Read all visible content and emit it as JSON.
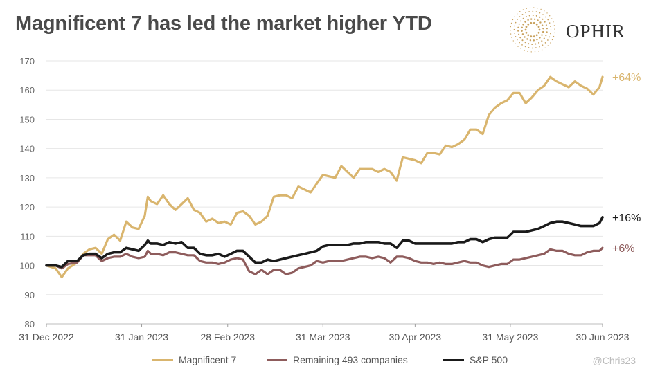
{
  "title": "Magnificent 7 has led the market higher YTD",
  "brand": {
    "name": "OPHIR",
    "logo_icon": "sunburst-dots-logo",
    "color": "#c9a25e"
  },
  "watermark": "@Chris23",
  "chart_data": {
    "type": "line",
    "title": "Magnificent 7 has led the market higher YTD",
    "xlabel": "",
    "ylabel": "",
    "ylim": [
      80,
      170
    ],
    "yticks": [
      "80",
      "90",
      "100",
      "110",
      "120",
      "130",
      "140",
      "150",
      "160",
      "170"
    ],
    "xlim": [
      0,
      181
    ],
    "xticks": [
      {
        "x": 0,
        "label": "31 Dec 2022"
      },
      {
        "x": 31,
        "label": "31 Jan 2023"
      },
      {
        "x": 59,
        "label": "28 Feb 2023"
      },
      {
        "x": 90,
        "label": "31 Mar 2023"
      },
      {
        "x": 120,
        "label": "30 Apr 2023"
      },
      {
        "x": 151,
        "label": "31 May 2023"
      },
      {
        "x": 181,
        "label": "30 Jun 2023"
      }
    ],
    "grid": "horizontal",
    "legend_position": "bottom",
    "series": [
      {
        "name": "Magnificent 7",
        "color": "#d9b56e",
        "end_label": "+64%",
        "x": [
          0,
          3,
          5,
          7,
          10,
          12,
          14,
          16,
          18,
          20,
          22,
          24,
          26,
          28,
          30,
          32,
          33,
          34,
          36,
          38,
          40,
          42,
          44,
          46,
          48,
          50,
          52,
          54,
          56,
          58,
          60,
          62,
          64,
          66,
          68,
          70,
          72,
          74,
          76,
          78,
          80,
          82,
          84,
          86,
          88,
          90,
          92,
          94,
          96,
          98,
          100,
          102,
          104,
          106,
          108,
          110,
          112,
          114,
          116,
          118,
          120,
          122,
          124,
          126,
          128,
          130,
          132,
          134,
          136,
          138,
          140,
          142,
          144,
          146,
          148,
          150,
          152,
          154,
          156,
          158,
          160,
          162,
          164,
          166,
          168,
          170,
          172,
          174,
          176,
          178,
          180,
          181
        ],
        "values": [
          100,
          99,
          96,
          99,
          101,
          104,
          105.5,
          106,
          104,
          109,
          110.5,
          108.5,
          115,
          113,
          112.5,
          117,
          123.5,
          122,
          121,
          124,
          121,
          119,
          121,
          123,
          119,
          118,
          115,
          116,
          114.5,
          115,
          114,
          118,
          118.5,
          117,
          114,
          115,
          117,
          123.5,
          124,
          124,
          123,
          127,
          126,
          125,
          128,
          131,
          130.5,
          130,
          134,
          132,
          130,
          133,
          133,
          133,
          132,
          133,
          132,
          129,
          137,
          136.5,
          136,
          135,
          138.5,
          138.5,
          138,
          141,
          140.5,
          141.5,
          143,
          146.5,
          146.5,
          145,
          151.5,
          154,
          155.5,
          156.5,
          159,
          159,
          155.5,
          157.5,
          160,
          161.5,
          164.5,
          163,
          162,
          161,
          163,
          161.5,
          160.5,
          158.5,
          161,
          164.5
        ]
      },
      {
        "name": "Remaining 493 companies",
        "color": "#8e5c5c",
        "end_label": "+6%",
        "x": [
          0,
          3,
          5,
          7,
          10,
          12,
          14,
          16,
          18,
          20,
          22,
          24,
          26,
          28,
          30,
          32,
          33,
          34,
          36,
          38,
          40,
          42,
          44,
          46,
          48,
          50,
          52,
          54,
          56,
          58,
          60,
          62,
          64,
          66,
          68,
          70,
          72,
          74,
          76,
          78,
          80,
          82,
          84,
          86,
          88,
          90,
          92,
          94,
          96,
          98,
          100,
          102,
          104,
          106,
          108,
          110,
          112,
          114,
          116,
          118,
          120,
          122,
          124,
          126,
          128,
          130,
          132,
          134,
          136,
          138,
          140,
          142,
          144,
          146,
          148,
          150,
          152,
          154,
          156,
          158,
          160,
          162,
          164,
          166,
          168,
          170,
          172,
          174,
          176,
          178,
          180,
          181
        ],
        "values": [
          100,
          100,
          99,
          100.5,
          101,
          103.5,
          103.5,
          103.5,
          101.5,
          102.5,
          103,
          103,
          104,
          103,
          102.5,
          103,
          105,
          104,
          104,
          103.5,
          104.5,
          104.5,
          104,
          103.5,
          103.5,
          101.5,
          101,
          101,
          100.5,
          101,
          102,
          102.5,
          102,
          98,
          97,
          98.5,
          97,
          98.5,
          98.5,
          97,
          97.5,
          99,
          99.5,
          100,
          101.5,
          101,
          101.5,
          101.5,
          101.5,
          102,
          102.5,
          103,
          103,
          102.5,
          103,
          102.5,
          101,
          103,
          103,
          102.5,
          101.5,
          101,
          101,
          100.5,
          101,
          100.5,
          100.5,
          101,
          101.5,
          101,
          101,
          100,
          99.5,
          100,
          100.5,
          100.5,
          102,
          102,
          102.5,
          103,
          103.5,
          104,
          105.5,
          105,
          105,
          104,
          103.5,
          103.5,
          104.5,
          105,
          105,
          106
        ]
      },
      {
        "name": "S&P 500",
        "color": "#1a1a1a",
        "end_label": "+16%",
        "x": [
          0,
          3,
          5,
          7,
          10,
          12,
          14,
          16,
          18,
          20,
          22,
          24,
          26,
          28,
          30,
          32,
          33,
          34,
          36,
          38,
          40,
          42,
          44,
          46,
          48,
          50,
          52,
          54,
          56,
          58,
          60,
          62,
          64,
          66,
          68,
          70,
          72,
          74,
          76,
          78,
          80,
          82,
          84,
          86,
          88,
          90,
          92,
          94,
          96,
          98,
          100,
          102,
          104,
          106,
          108,
          110,
          112,
          114,
          116,
          118,
          120,
          122,
          124,
          126,
          128,
          130,
          132,
          134,
          136,
          138,
          140,
          142,
          144,
          146,
          148,
          150,
          152,
          154,
          156,
          158,
          160,
          162,
          164,
          166,
          168,
          170,
          172,
          174,
          176,
          178,
          180,
          181
        ],
        "values": [
          100,
          100,
          99.5,
          101.5,
          101.5,
          103.5,
          104,
          104,
          102.5,
          104,
          104.5,
          104.5,
          106,
          105.5,
          105,
          107,
          108.5,
          107.5,
          107.5,
          107,
          108,
          107.5,
          108,
          106,
          106,
          104,
          103.5,
          103.5,
          104,
          103,
          104,
          105,
          105,
          103,
          101,
          101,
          102,
          101.5,
          102,
          102.5,
          103,
          103.5,
          104,
          104.5,
          105,
          106.5,
          107,
          107,
          107,
          107,
          107.5,
          107.5,
          108,
          108,
          108,
          107.5,
          107.5,
          106,
          108.5,
          108.5,
          107.5,
          107.5,
          107.5,
          107.5,
          107.5,
          107.5,
          107.5,
          108,
          108,
          109,
          109,
          108,
          109,
          109.5,
          109.5,
          109.5,
          111.5,
          111.5,
          111.5,
          112,
          112.5,
          113.5,
          114.5,
          115,
          115,
          114.5,
          114,
          113.5,
          113.5,
          113.5,
          114.5,
          116.5
        ]
      }
    ]
  }
}
